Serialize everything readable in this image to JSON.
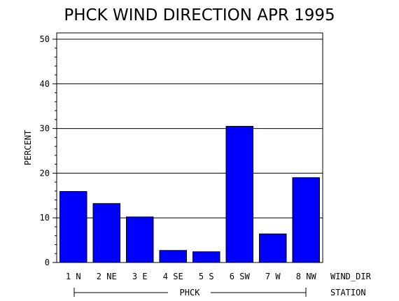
{
  "chart_data": {
    "type": "bar",
    "title": "PHCK WIND DIRECTION APR 1995",
    "ylabel": "PERCENT",
    "xlabel": "WIND_DIR",
    "group_label": "PHCK",
    "group_axis_label": "STATION",
    "ylim": [
      0,
      50
    ],
    "yticks": [
      "0",
      "10",
      "20",
      "30",
      "40",
      "50"
    ],
    "categories": [
      "1 N",
      "2 NE",
      "3 E",
      "4 SE",
      "5 S",
      "6 SW",
      "7 W",
      "8 NW"
    ],
    "values": [
      15.9,
      13.2,
      10.2,
      2.7,
      2.4,
      30.5,
      6.4,
      19.0
    ],
    "bar_color": "#0000ff",
    "grid": "horizontal lines at major ticks"
  }
}
